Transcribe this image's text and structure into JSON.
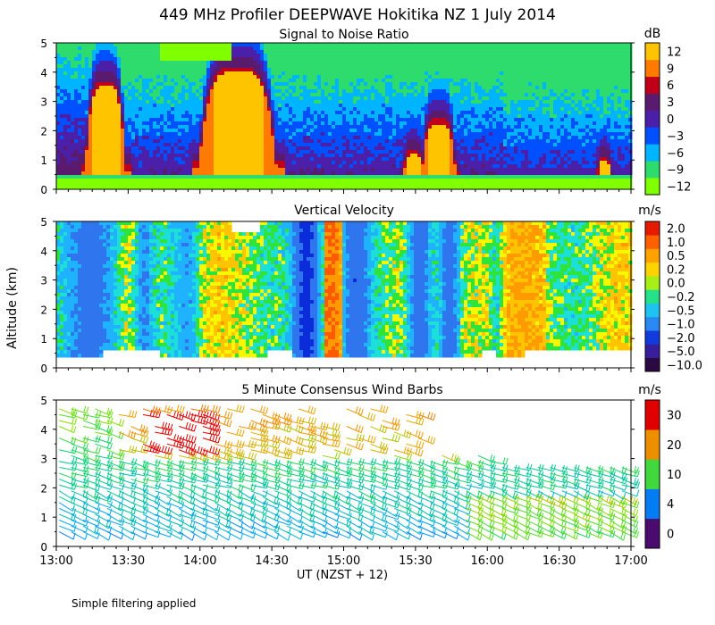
{
  "title": "449 MHz Profiler DEEPWAVE Hokitika NZ  1 July 2014",
  "x_axis": {
    "label": "UT  (NZST + 12)",
    "ticks": [
      "13:00",
      "13:30",
      "14:00",
      "14:30",
      "15:00",
      "15:30",
      "16:00",
      "16:30",
      "17:00"
    ],
    "range_hours": [
      13,
      17
    ]
  },
  "y_axis": {
    "label": "Altitude (km)",
    "range_km": [
      0,
      5
    ]
  },
  "footnote": "Simple filtering applied",
  "colors": {
    "snr": [
      "#7fff00",
      "#2edc6e",
      "#00b4ff",
      "#0050ff",
      "#4b1fa8",
      "#5a1a6e",
      "#c00018",
      "#ff7a00",
      "#ffc400"
    ],
    "velocity": [
      "#2a0a40",
      "#3b1c96",
      "#0b2cd9",
      "#2f76ee",
      "#1fb2ff",
      "#1ce0d8",
      "#2ee33a",
      "#f7f700",
      "#ffc400",
      "#ff9a00",
      "#ff5a00",
      "#e61a00"
    ],
    "wind": [
      "#4a0a6e",
      "#1010d0",
      "#00a0ff",
      "#00d07a",
      "#7fe000",
      "#f0a000",
      "#e85a00",
      "#e00000"
    ]
  },
  "chart_data": [
    {
      "type": "heatmap",
      "title": "Signal to Noise Ratio",
      "unit": "dB",
      "color_levels": [
        "−12",
        "−9",
        "−6",
        "−3",
        "0",
        "3",
        "6",
        "9",
        "12"
      ],
      "x_range_hours": [
        13,
        17
      ],
      "y_range_km": [
        0,
        5
      ]
    },
    {
      "type": "heatmap",
      "title": "Vertical Velocity",
      "unit": "m/s",
      "color_levels": [
        "−10.0",
        "−5.0",
        "−2.0",
        "−1.0",
        "−0.5",
        "−0.2",
        "0.0",
        "0.2",
        "0.5",
        "1.0",
        "2.0"
      ],
      "x_range_hours": [
        13,
        17
      ],
      "y_range_km": [
        0,
        5
      ]
    },
    {
      "type": "scatter",
      "title": "5 Minute Consensus Wind Barbs",
      "unit": "m/s",
      "color_levels": [
        "0",
        "4",
        "10",
        "20",
        "30"
      ],
      "x_range_hours": [
        13,
        17
      ],
      "y_range_km": [
        0,
        5
      ]
    }
  ]
}
